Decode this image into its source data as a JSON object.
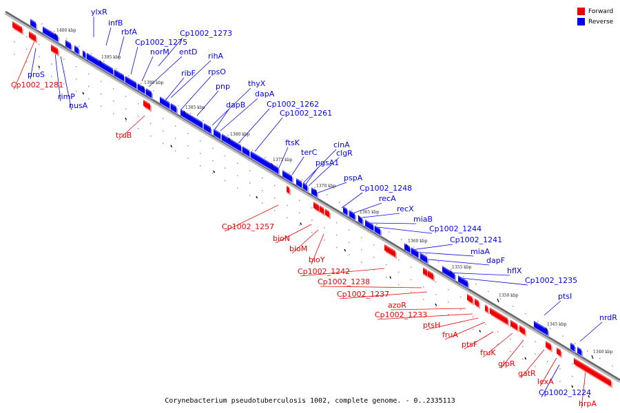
{
  "caption": "Corynebacterium pseudotuberculosis 1002, complete genome. - 0..2335113",
  "legend": [
    {
      "label": "Forward",
      "color": "#ee0000"
    },
    {
      "label": "Reverse",
      "color": "#0000ee"
    }
  ],
  "colors": {
    "forward": "#ee0000",
    "reverse": "#0000ee",
    "backbone": "#888888"
  },
  "ticks": [
    "1400 kbp",
    "1395 kbp",
    "1390 kbp",
    "1385 kbp",
    "1380 kbp",
    "1375 kbp",
    "1370 kbp",
    "1365 kbp",
    "1360 kbp",
    "1355 kbp",
    "1350 kbp",
    "1345 kbp",
    "1340 kbp"
  ],
  "reverse_labels": [
    "ylxR",
    "infB",
    "rbfA",
    "Cp1002_1273",
    "Cp1002_1275",
    "norM",
    "entD",
    "rihA",
    "ribF",
    "rpsO",
    "pnp",
    "thyX",
    "dapA",
    "dapB",
    "Cp1002_1262",
    "Cp1002_1261",
    "ftsK",
    "terC",
    "cinA",
    "clgR",
    "pgsA1",
    "pspA",
    "Cp1002_1248",
    "recA",
    "recX",
    "miaB",
    "Cp1002_1244",
    "Cp1002_1241",
    "miaA",
    "dapF",
    "hflX",
    "Cp1002_1235",
    "ptsI",
    "nrdR",
    "proS",
    "rimP",
    "nusA",
    "Cp1002_1224"
  ],
  "forward_labels": [
    "Cp1002_1281",
    "truB",
    "Cp1002_1257",
    "bioN",
    "bioM",
    "bioY",
    "Cp1002_1242",
    "Cp1002_1238",
    "Cp1002_1237",
    "azoR",
    "Cp1002_1233",
    "ptsH",
    "fruA",
    "ptsF",
    "fruK",
    "glpR",
    "gatR",
    "lexA",
    "hrpA"
  ]
}
